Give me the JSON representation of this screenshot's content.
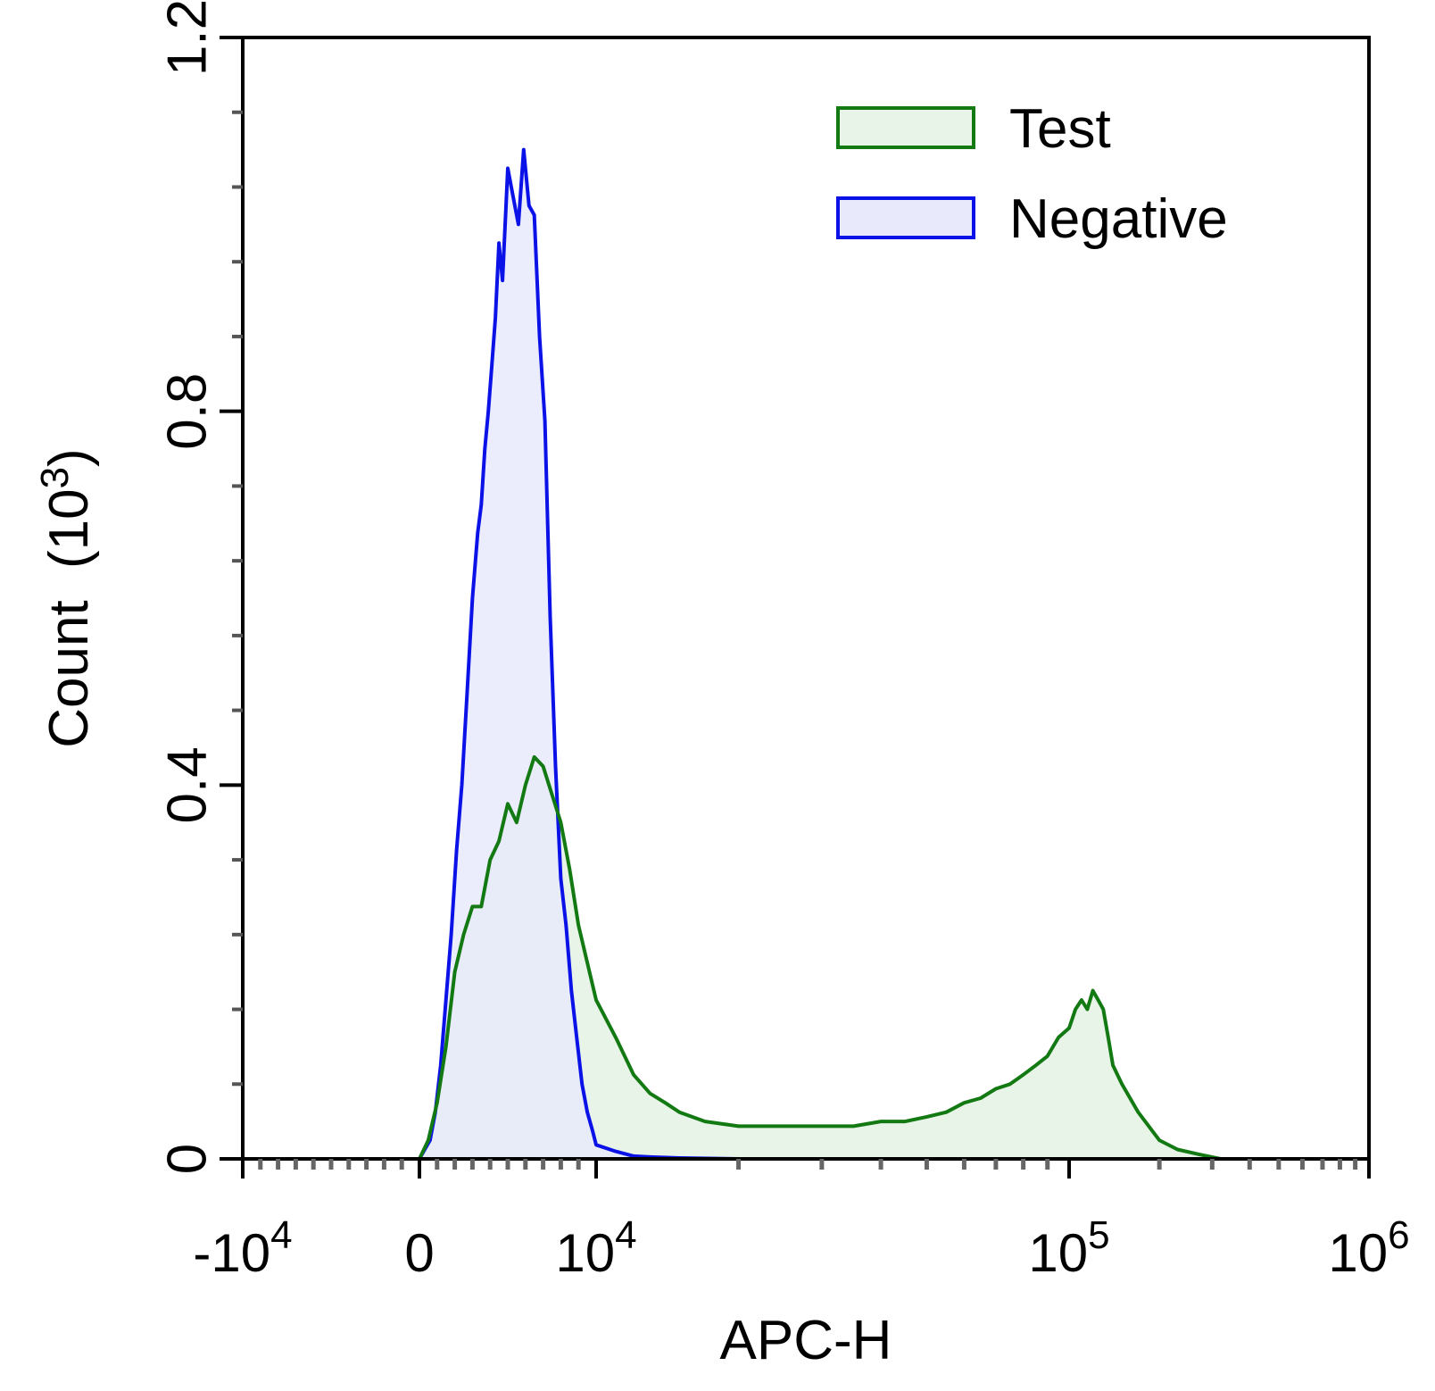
{
  "chart_data": {
    "type": "area",
    "title": "",
    "xlabel": "APC-H",
    "ylabel": "Count",
    "ylabel_unit_base": "10",
    "ylabel_unit_exp": "3",
    "x_scale": "biexponential",
    "xlim": [
      -10000,
      1000000
    ],
    "ylim": [
      0,
      1.2
    ],
    "x_ticks": [
      {
        "value": -10000,
        "base": "-10",
        "exp": "4"
      },
      {
        "value": 0,
        "base": "0",
        "exp": ""
      },
      {
        "value": 10000,
        "base": "10",
        "exp": "4"
      },
      {
        "value": 100000,
        "base": "10",
        "exp": "5"
      },
      {
        "value": 1000000,
        "base": "10",
        "exp": "6"
      }
    ],
    "y_ticks": [
      "0",
      "0.4",
      "0.8",
      "1.2"
    ],
    "y_tick_values": [
      0,
      0.4,
      0.8,
      1.2
    ],
    "grid": false,
    "legend_position": "top-right",
    "series": [
      {
        "name": "Test",
        "color": "#137a13",
        "fill": "#e9f4e9",
        "x": [
          -10000,
          0,
          500,
          1000,
          1500,
          2000,
          2500,
          3000,
          3500,
          4000,
          4500,
          5000,
          5500,
          6000,
          6500,
          7000,
          7500,
          8000,
          8500,
          9000,
          9500,
          10000,
          11000,
          12000,
          13000,
          14000,
          15000,
          17000,
          20000,
          25000,
          30000,
          35000,
          40000,
          45000,
          50000,
          55000,
          60000,
          65000,
          70000,
          75000,
          80000,
          85000,
          90000,
          95000,
          100000,
          105000,
          110000,
          115000,
          120000,
          125000,
          130000,
          135000,
          140000,
          150000,
          170000,
          200000,
          230000,
          270000,
          320000,
          400000,
          500000,
          700000,
          1000000
        ],
        "y": [
          0,
          0,
          0.02,
          0.06,
          0.12,
          0.2,
          0.24,
          0.27,
          0.27,
          0.32,
          0.34,
          0.38,
          0.36,
          0.4,
          0.43,
          0.42,
          0.39,
          0.36,
          0.31,
          0.25,
          0.21,
          0.17,
          0.13,
          0.09,
          0.07,
          0.06,
          0.05,
          0.04,
          0.035,
          0.035,
          0.035,
          0.035,
          0.04,
          0.04,
          0.045,
          0.05,
          0.06,
          0.065,
          0.075,
          0.08,
          0.09,
          0.1,
          0.11,
          0.13,
          0.14,
          0.16,
          0.17,
          0.16,
          0.18,
          0.17,
          0.16,
          0.13,
          0.1,
          0.08,
          0.05,
          0.02,
          0.01,
          0.005,
          0,
          0,
          0,
          0,
          0
        ]
      },
      {
        "name": "Negative",
        "color": "#0b12e8",
        "fill": "#e8eafb",
        "x": [
          -10000,
          0,
          300,
          600,
          900,
          1200,
          1500,
          1800,
          2100,
          2400,
          2700,
          3000,
          3300,
          3500,
          3700,
          3900,
          4100,
          4300,
          4500,
          4700,
          5000,
          5300,
          5600,
          5900,
          6200,
          6500,
          6800,
          7100,
          7400,
          7700,
          8000,
          8300,
          8600,
          8900,
          9200,
          9500,
          9800,
          10000,
          11000,
          12000,
          13000,
          15000,
          20000,
          30000,
          50000,
          100000,
          1000000
        ],
        "y": [
          0,
          0,
          0.01,
          0.02,
          0.05,
          0.1,
          0.17,
          0.24,
          0.33,
          0.4,
          0.5,
          0.6,
          0.67,
          0.7,
          0.76,
          0.8,
          0.85,
          0.9,
          0.98,
          0.94,
          1.06,
          1.03,
          1.0,
          1.08,
          1.02,
          1.01,
          0.88,
          0.79,
          0.58,
          0.42,
          0.3,
          0.25,
          0.18,
          0.13,
          0.08,
          0.05,
          0.03,
          0.015,
          0.008,
          0.003,
          0.002,
          0.001,
          0,
          0,
          0,
          0,
          0
        ]
      }
    ]
  }
}
